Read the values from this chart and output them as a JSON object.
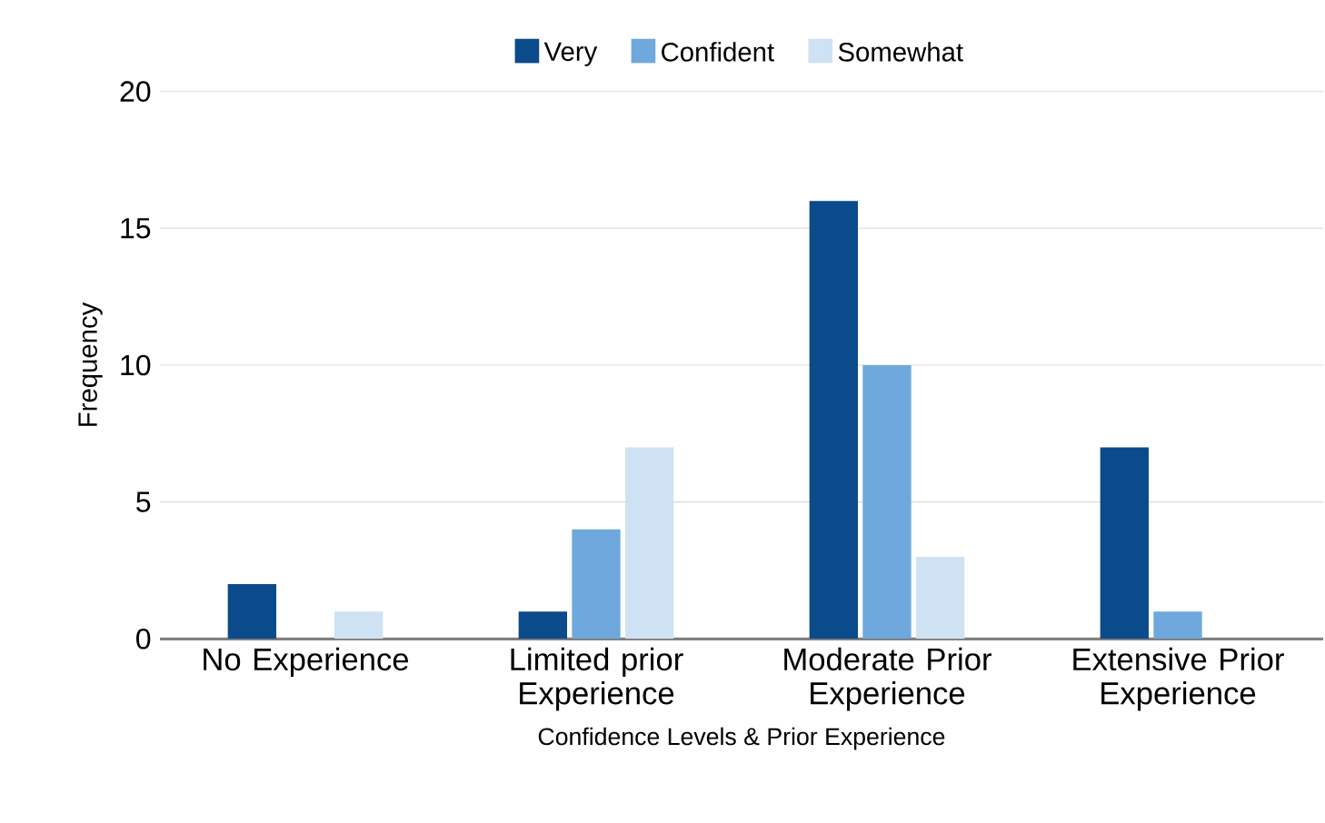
{
  "chart_data": {
    "type": "bar",
    "xlabel": "Confidence Levels & Prior Experience",
    "ylabel": "Frequency",
    "categories": [
      "No Experience",
      "Limited prior Experience",
      "Moderate Prior Experience",
      "Extensive Prior Experience"
    ],
    "series": [
      {
        "name": "Very",
        "color": "#0b4a8b",
        "values": [
          2,
          1,
          16,
          7
        ]
      },
      {
        "name": "Confident",
        "color": "#6fa8dc",
        "values": [
          0,
          4,
          10,
          1
        ]
      },
      {
        "name": "Somewhat",
        "color": "#cfe2f3",
        "values": [
          1,
          7,
          3,
          0
        ]
      }
    ],
    "ylim": [
      0,
      20
    ],
    "yticks": [
      0,
      5,
      10,
      15,
      20
    ],
    "grid": "y",
    "legend": "top"
  }
}
